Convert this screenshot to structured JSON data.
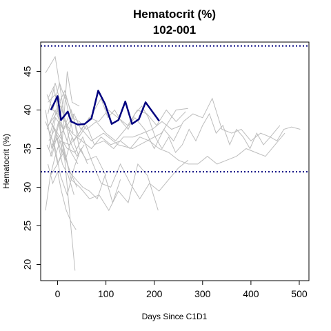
{
  "chart_data": {
    "type": "line",
    "title": "Hematocrit (%)",
    "subtitle": "102-001",
    "xlabel": "Days Since C1D1",
    "ylabel": "Hematocrit (%)",
    "xlim": [
      -35,
      520
    ],
    "ylim": [
      17.9,
      48.8
    ],
    "xticks": [
      0,
      100,
      200,
      300,
      400,
      500
    ],
    "yticks": [
      20,
      25,
      30,
      35,
      40,
      45
    ],
    "grid": false,
    "legend": "none",
    "reference_lines": [
      {
        "y": 48.3,
        "color": "#00007f",
        "style": "dotted"
      },
      {
        "y": 32.0,
        "color": "#00007f",
        "style": "dotted"
      }
    ],
    "highlight": {
      "name": "102-001",
      "color": "#00007f",
      "x": [
        -14,
        0,
        7,
        21,
        28,
        42,
        56,
        70,
        84,
        98,
        112,
        126,
        140,
        154,
        168,
        182,
        196,
        210
      ],
      "y": [
        40.0,
        41.8,
        38.7,
        39.8,
        38.5,
        38.1,
        38.2,
        38.9,
        42.5,
        40.8,
        38.2,
        38.7,
        41.1,
        38.2,
        38.8,
        41.0,
        39.8,
        38.6
      ]
    },
    "background_series_color": "#bdbdbd",
    "series": [
      {
        "x": [
          -25,
          -5,
          5,
          15
        ],
        "y": [
          44.8,
          46.9,
          43.0,
          38.8
        ]
      },
      {
        "x": [
          -20,
          -8,
          3,
          14,
          28,
          42
        ],
        "y": [
          41.5,
          43.0,
          39.5,
          37.0,
          34.5,
          33.0
        ]
      },
      {
        "x": [
          -25,
          -10,
          0,
          12,
          26,
          40
        ],
        "y": [
          38.5,
          36.0,
          33.0,
          34.5,
          32.0,
          30.0
        ]
      },
      {
        "x": [
          -22,
          -12,
          -2,
          10,
          22,
          34
        ],
        "y": [
          35.5,
          34.0,
          36.5,
          33.0,
          31.5,
          29.0
        ]
      },
      {
        "x": [
          -20,
          -10,
          0,
          8,
          18,
          28,
          38
        ],
        "y": [
          33.0,
          30.5,
          32.0,
          29.5,
          27.0,
          25.5,
          24.5
        ]
      },
      {
        "x": [
          -25,
          -15,
          -5,
          5,
          15,
          25,
          36
        ],
        "y": [
          27.0,
          31.5,
          34.0,
          36.0,
          33.5,
          26.5,
          19.2
        ]
      },
      {
        "x": [
          -22,
          -5,
          8,
          20,
          32,
          45,
          60,
          80,
          100
        ],
        "y": [
          37.5,
          40.0,
          38.0,
          36.0,
          39.5,
          35.0,
          33.5,
          34.0,
          31.5
        ]
      },
      {
        "x": [
          -18,
          -6,
          8,
          20,
          30,
          45
        ],
        "y": [
          36.0,
          37.5,
          34.5,
          45.0,
          41.0,
          40.5
        ]
      },
      {
        "x": [
          -15,
          0,
          12,
          24,
          38,
          52,
          66,
          82,
          98,
          114,
          130
        ],
        "y": [
          31.5,
          33.0,
          35.0,
          32.0,
          31.0,
          30.0,
          29.5,
          28.5,
          31.5,
          28.0,
          31.0
        ]
      },
      {
        "x": [
          -10,
          5,
          20,
          36,
          52,
          70,
          90,
          110,
          130,
          150,
          170,
          190,
          210,
          230,
          250,
          270
        ],
        "y": [
          38.0,
          36.5,
          35.0,
          34.5,
          36.5,
          33.5,
          30.5,
          30.0,
          33.0,
          30.5,
          28.5,
          30.5,
          29.5,
          31.0,
          32.5,
          33.5
        ]
      },
      {
        "x": [
          -20,
          -5,
          10,
          28,
          46,
          66,
          86,
          106,
          126,
          146,
          166,
          186,
          208
        ],
        "y": [
          41.0,
          42.0,
          36.0,
          31.0,
          30.0,
          28.5,
          29.0,
          27.0,
          29.5,
          28.0,
          33.0,
          31.5,
          27.0
        ]
      },
      {
        "x": [
          -18,
          -4,
          12,
          28,
          44,
          60,
          76,
          96,
          116,
          136,
          156,
          176,
          196,
          216,
          236,
          256
        ],
        "y": [
          35.0,
          39.0,
          37.5,
          40.0,
          36.5,
          38.0,
          35.5,
          36.0,
          35.0,
          36.5,
          36.5,
          37.0,
          37.5,
          38.5,
          37.5,
          38.0
        ]
      },
      {
        "x": [
          -15,
          5,
          25,
          45,
          65,
          85,
          105,
          125,
          145,
          165,
          185,
          205,
          225,
          245,
          265
        ],
        "y": [
          38.5,
          36.0,
          35.5,
          37.0,
          39.0,
          38.5,
          40.0,
          39.0,
          38.0,
          40.0,
          39.5,
          38.0,
          40.0,
          38.5,
          39.8
        ]
      },
      {
        "x": [
          -12,
          3,
          18,
          34,
          50,
          70,
          95,
          125,
          155,
          185,
          215,
          245,
          270
        ],
        "y": [
          35.5,
          36.5,
          38.0,
          36.0,
          37.5,
          36.0,
          37.0,
          35.5,
          35.0,
          36.0,
          37.0,
          40.0,
          40.2
        ]
      },
      {
        "x": [
          -20,
          -8,
          6,
          20,
          34,
          48,
          62,
          76,
          90,
          104,
          118,
          132,
          146,
          160,
          174,
          188,
          202,
          216,
          230,
          244,
          258,
          272,
          286,
          300,
          314,
          328,
          342,
          356,
          370,
          384,
          398,
          412,
          426,
          440,
          454,
          468,
          484,
          502
        ],
        "y": [
          38.0,
          39.0,
          40.5,
          38.0,
          39.5,
          37.5,
          38.5,
          40.0,
          41.5,
          39.0,
          40.0,
          38.5,
          37.5,
          39.5,
          40.5,
          39.0,
          36.5,
          35.0,
          36.5,
          34.5,
          35.5,
          37.5,
          36.0,
          38.0,
          39.5,
          37.0,
          38.0,
          35.5,
          37.5,
          36.5,
          35.0,
          37.0,
          35.5,
          36.5,
          36.0,
          37.5,
          37.8,
          37.5
        ]
      },
      {
        "x": [
          -10,
          10,
          30,
          50,
          70,
          90,
          110,
          130,
          150,
          170,
          190,
          210,
          230,
          250,
          270,
          290,
          310,
          330,
          350,
          370,
          390,
          410,
          430,
          450,
          470
        ],
        "y": [
          40.0,
          39.0,
          37.0,
          36.0,
          35.0,
          36.5,
          35.5,
          36.0,
          35.0,
          36.5,
          36.0,
          35.0,
          34.5,
          33.5,
          33.0,
          33.0,
          34.0,
          33.0,
          33.5,
          34.0,
          35.0,
          34.5,
          34.0,
          35.5,
          37.0
        ]
      },
      {
        "x": [
          -15,
          0,
          15,
          30,
          45,
          60,
          80,
          100,
          120,
          140,
          160,
          180,
          200,
          220,
          240,
          260,
          280,
          300,
          320,
          340,
          360,
          380,
          400,
          420,
          440,
          460
        ],
        "y": [
          37.0,
          40.5,
          42.5,
          39.0,
          38.5,
          37.5,
          38.5,
          37.0,
          36.0,
          37.5,
          39.0,
          37.5,
          35.0,
          37.5,
          36.0,
          38.5,
          39.5,
          39.0,
          41.5,
          37.5,
          37.0,
          37.5,
          36.0,
          37.0,
          36.5,
          38.0
        ]
      },
      {
        "x": [
          -20,
          -5,
          10,
          25,
          40,
          55
        ],
        "y": [
          39.5,
          43.5,
          40.0,
          36.0,
          34.0,
          35.5
        ]
      },
      {
        "x": [
          -8,
          6,
          20,
          34,
          48,
          62
        ],
        "y": [
          36.0,
          31.5,
          29.0,
          32.5,
          35.0,
          33.0
        ]
      },
      {
        "x": [
          -22,
          -10,
          4,
          18,
          32
        ],
        "y": [
          42.0,
          40.0,
          43.5,
          41.0,
          37.0
        ]
      },
      {
        "x": [
          -15,
          0,
          15,
          30
        ],
        "y": [
          34.0,
          37.5,
          42.0,
          39.5
        ]
      },
      {
        "x": [
          -25,
          -12,
          2,
          16,
          30,
          44
        ],
        "y": [
          40.0,
          35.0,
          38.5,
          33.5,
          36.5,
          34.0
        ]
      }
    ]
  }
}
